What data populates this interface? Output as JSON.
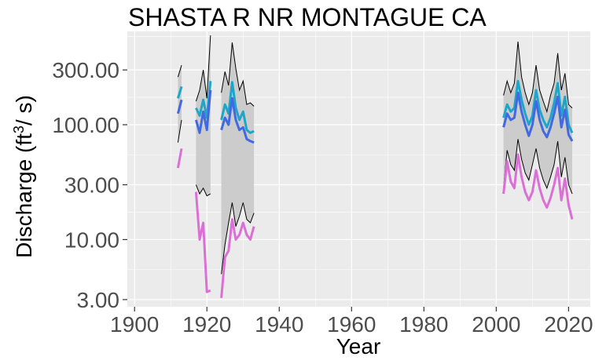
{
  "chart_data": {
    "type": "line",
    "title": "SHASTA R NR MONTAGUE CA",
    "xlabel": "Year",
    "ylabel_prefix": "Discharge (ft",
    "ylabel_sup": "3",
    "ylabel_suffix": "/ s)",
    "y_scale": "log10",
    "xlim": [
      1898,
      2026
    ],
    "ylim": [
      2.6,
      650
    ],
    "x_ticks": [
      1900,
      1920,
      1940,
      1960,
      1980,
      2000,
      2020
    ],
    "x_tick_labels": [
      "1900",
      "1920",
      "1940",
      "1960",
      "1980",
      "2000",
      "2020"
    ],
    "y_ticks": [
      3,
      10,
      30,
      100,
      300
    ],
    "y_tick_labels": [
      "3.00",
      "10.00",
      "30.00",
      "100.00",
      "300.00"
    ],
    "grid": true,
    "legend": "none",
    "colors": {
      "panel": "#ebebeb",
      "grid": "#ffffff",
      "band": "#cccccc",
      "band_edge": "#000000",
      "mean": "#1ea6c9",
      "median": "#4169e1",
      "low": "#da70d6"
    },
    "band": [
      {
        "segment": 1,
        "x": [
          1912,
          1913
        ],
        "upper": [
          260,
          330
        ],
        "lower": [
          70,
          110
        ]
      },
      {
        "segment": 2,
        "x": [
          1917,
          1918,
          1919,
          1920,
          1921
        ],
        "upper": [
          160,
          200,
          300,
          170,
          600
        ],
        "lower": [
          30,
          25,
          28,
          24,
          25
        ]
      },
      {
        "segment": 3,
        "x": [
          1924,
          1925,
          1926,
          1927,
          1928,
          1929,
          1930,
          1931,
          1932,
          1933
        ],
        "upper": [
          190,
          290,
          220,
          520,
          310,
          200,
          240,
          150,
          155,
          145
        ],
        "lower": [
          5,
          9,
          14,
          21,
          13,
          16,
          21,
          15,
          14,
          17
        ]
      },
      {
        "segment": 4,
        "x": [
          2002,
          2003,
          2004,
          2005,
          2006,
          2007,
          2008,
          2009,
          2010,
          2011,
          2012,
          2013,
          2014,
          2015,
          2016,
          2017,
          2018,
          2019,
          2020,
          2021
        ],
        "upper": [
          180,
          240,
          190,
          230,
          530,
          260,
          190,
          150,
          190,
          330,
          200,
          160,
          130,
          180,
          230,
          420,
          200,
          280,
          150,
          140
        ],
        "lower": [
          28,
          60,
          45,
          40,
          75,
          50,
          38,
          33,
          45,
          62,
          42,
          33,
          28,
          35,
          45,
          72,
          35,
          52,
          30,
          25
        ]
      }
    ],
    "series": [
      {
        "key": "mean",
        "segments": [
          {
            "x": [
              1912,
              1913
            ],
            "y": [
              170,
              215
            ]
          },
          {
            "x": [
              1917,
              1918,
              1919,
              1920,
              1921
            ],
            "y": [
              140,
              120,
              165,
              115,
              240
            ]
          },
          {
            "x": [
              1924,
              1925,
              1926,
              1927,
              1928,
              1929,
              1930,
              1931,
              1932,
              1933
            ],
            "y": [
              110,
              150,
              125,
              235,
              140,
              110,
              130,
              90,
              85,
              88
            ]
          },
          {
            "x": [
              2002,
              2003,
              2004,
              2005,
              2006,
              2007,
              2008,
              2009,
              2010,
              2011,
              2012,
              2013,
              2014,
              2015,
              2016,
              2017,
              2018,
              2019,
              2020,
              2021
            ],
            "y": [
              115,
              150,
              130,
              140,
              240,
              165,
              125,
              100,
              120,
              200,
              135,
              110,
              95,
              115,
              155,
              230,
              120,
              175,
              100,
              85
            ]
          }
        ]
      },
      {
        "key": "median",
        "segments": [
          {
            "x": [
              1912,
              1913
            ],
            "y": [
              125,
              165
            ]
          },
          {
            "x": [
              1917,
              1918,
              1919,
              1920,
              1921
            ],
            "y": [
              110,
              85,
              130,
              90,
              200
            ]
          },
          {
            "x": [
              1924,
              1925,
              1926,
              1927,
              1928,
              1929,
              1930,
              1931,
              1932,
              1933
            ],
            "y": [
              90,
              115,
              100,
              170,
              110,
              90,
              95,
              75,
              72,
              70
            ]
          },
          {
            "x": [
              2002,
              2003,
              2004,
              2005,
              2006,
              2007,
              2008,
              2009,
              2010,
              2011,
              2012,
              2013,
              2014,
              2015,
              2016,
              2017,
              2018,
              2019,
              2020,
              2021
            ],
            "y": [
              95,
              125,
              110,
              115,
              190,
              130,
              100,
              80,
              100,
              160,
              110,
              88,
              78,
              95,
              125,
              175,
              95,
              135,
              82,
              72
            ]
          }
        ]
      },
      {
        "key": "low",
        "segments": [
          {
            "x": [
              1912,
              1913
            ],
            "y": [
              42,
              62
            ]
          },
          {
            "x": [
              1917,
              1918,
              1919,
              1920,
              1921
            ],
            "y": [
              26,
              10,
              14,
              3.5,
              3.6
            ]
          },
          {
            "x": [
              1924,
              1925,
              1926,
              1927,
              1928,
              1929,
              1930,
              1931,
              1932,
              1933
            ],
            "y": [
              3.1,
              7,
              8,
              15,
              10,
              11,
              14,
              11,
              10,
              13
            ]
          },
          {
            "x": [
              2002,
              2003,
              2004,
              2005,
              2006,
              2007,
              2008,
              2009,
              2010,
              2011,
              2012,
              2013,
              2014,
              2015,
              2016,
              2017,
              2018,
              2019,
              2020,
              2021
            ],
            "y": [
              25,
              48,
              32,
              28,
              55,
              35,
              26,
              22,
              26,
              40,
              28,
              22,
              19,
              23,
              30,
              42,
              22,
              34,
              20,
              15
            ]
          }
        ]
      }
    ]
  }
}
